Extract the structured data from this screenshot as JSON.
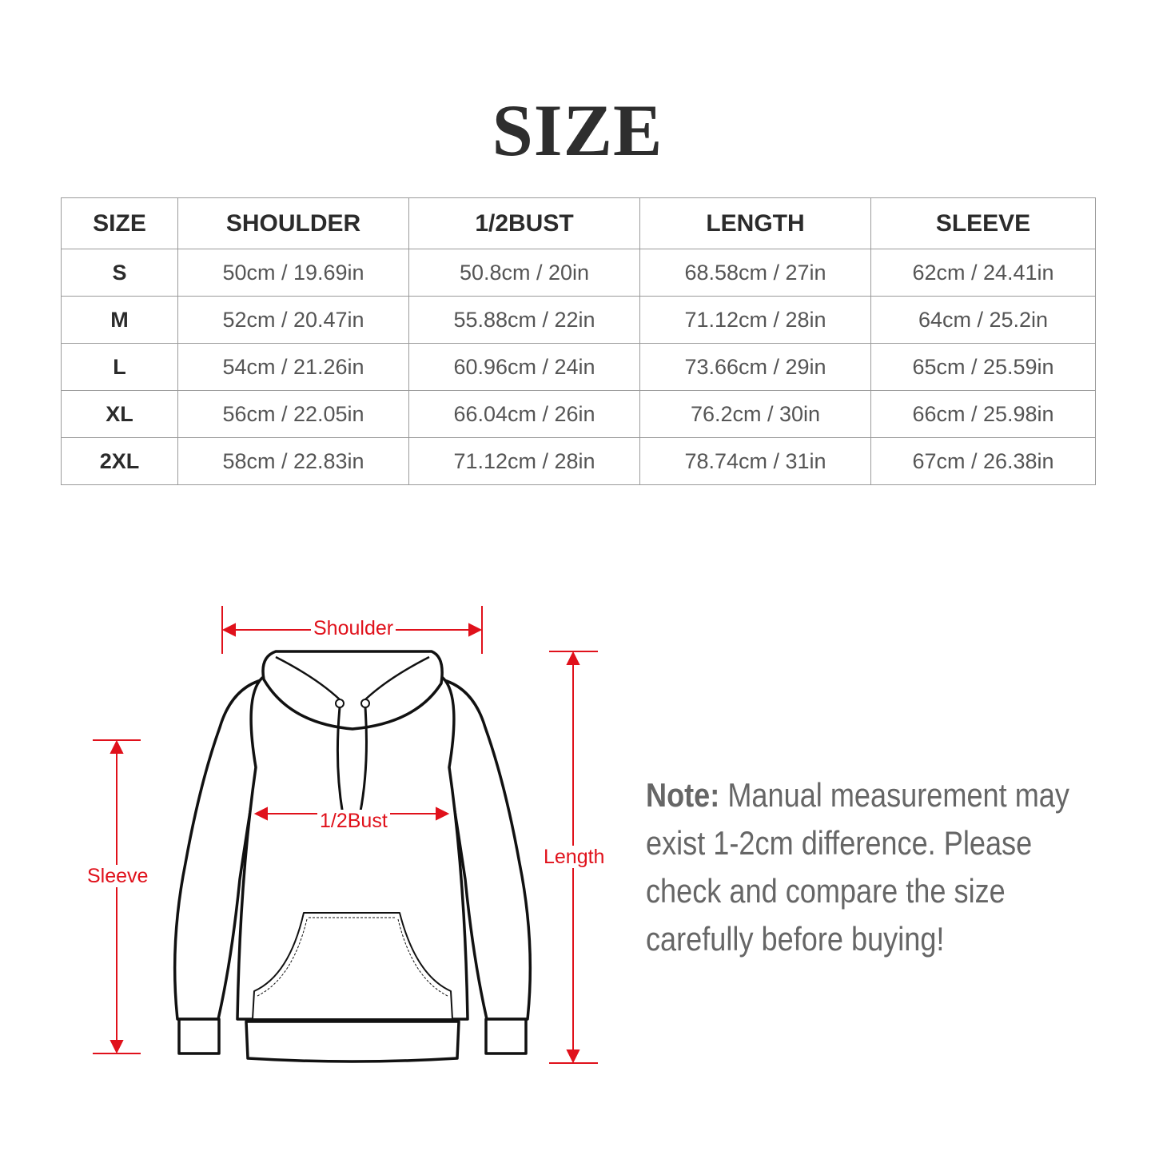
{
  "title": "SIZE",
  "table": {
    "headers": [
      "SIZE",
      "SHOULDER",
      "1/2BUST",
      "LENGTH",
      "SLEEVE"
    ],
    "rows": [
      [
        "S",
        "50cm / 19.69in",
        "50.8cm / 20in",
        "68.58cm / 27in",
        "62cm / 24.41in"
      ],
      [
        "M",
        "52cm / 20.47in",
        "55.88cm / 22in",
        "71.12cm / 28in",
        "64cm / 25.2in"
      ],
      [
        "L",
        "54cm / 21.26in",
        "60.96cm / 24in",
        "73.66cm / 29in",
        "65cm / 25.59in"
      ],
      [
        "XL",
        "56cm / 22.05in",
        "66.04cm / 26in",
        "76.2cm / 30in",
        "66cm / 25.98in"
      ],
      [
        "2XL",
        "58cm / 22.83in",
        "71.12cm / 28in",
        "78.74cm / 31in",
        "67cm / 26.38in"
      ]
    ]
  },
  "diagram": {
    "shoulder_label": "Shoulder",
    "bust_label": "1/2Bust",
    "sleeve_label": "Sleeve",
    "length_label": "Length",
    "measure_color": "#e0111b"
  },
  "note": {
    "prefix": "Note:",
    "text": " Manual measurement may exist 1-2cm difference. Please check and compare the size carefully before buying!"
  }
}
